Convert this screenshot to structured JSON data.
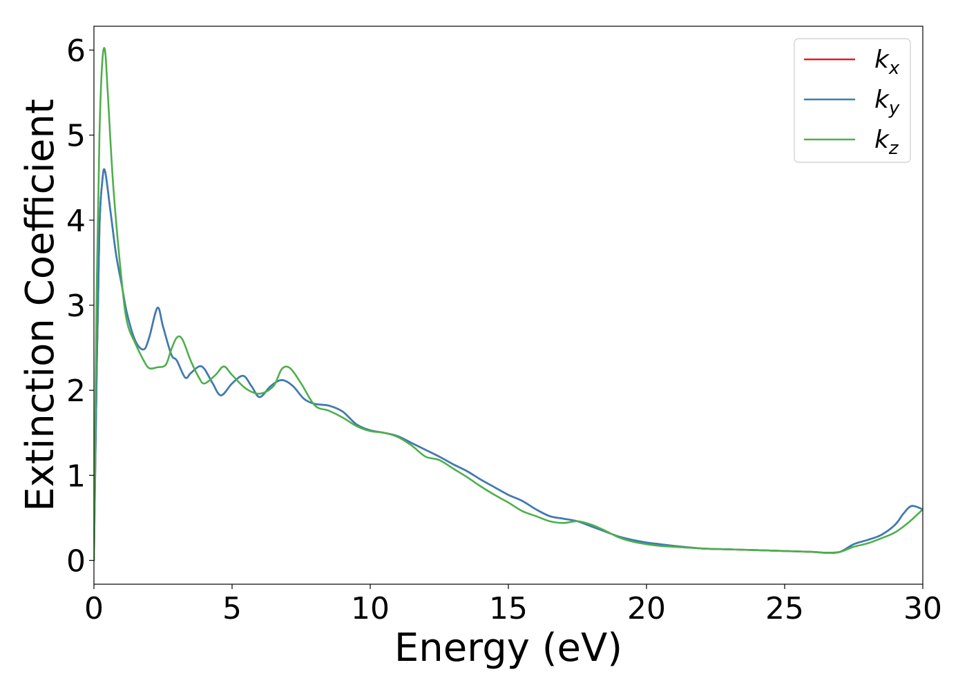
{
  "chart_data": {
    "type": "line",
    "xlabel": "Energy (eV)",
    "ylabel": "Extinction Coefficient",
    "xlim": [
      0,
      30
    ],
    "ylim": [
      -0.28,
      6.28
    ],
    "xticks": [
      0,
      5,
      10,
      15,
      20,
      25,
      30
    ],
    "yticks": [
      0,
      1,
      2,
      3,
      4,
      5,
      6
    ],
    "grid": false,
    "legend_position": "top-right",
    "series": [
      {
        "name": "k_x",
        "color": "#e41a1c",
        "x": [
          0,
          0.1,
          0.2,
          0.3,
          0.4,
          0.6,
          0.8,
          1.0,
          1.2,
          1.5,
          1.8,
          2.0,
          2.3,
          2.5,
          2.8,
          3.0,
          3.3,
          3.5,
          3.8,
          4.0,
          4.3,
          4.6,
          5.0,
          5.4,
          5.7,
          6.0,
          6.4,
          6.8,
          7.2,
          7.6,
          8.0,
          8.5,
          9.0,
          9.5,
          10.0,
          10.5,
          11.0,
          11.5,
          12.0,
          12.5,
          13.0,
          13.5,
          14.0,
          14.5,
          15.0,
          15.5,
          16.0,
          16.5,
          17.0,
          17.5,
          18.0,
          18.5,
          19.0,
          19.5,
          20.0,
          20.5,
          21.0,
          22.0,
          23.0,
          24.0,
          25.0,
          26.0,
          26.5,
          27.0,
          27.5,
          28.0,
          28.5,
          29.0,
          29.3,
          29.6,
          30.0
        ],
        "y": [
          0,
          2.2,
          3.9,
          4.45,
          4.58,
          4.1,
          3.6,
          3.25,
          2.9,
          2.58,
          2.48,
          2.62,
          2.97,
          2.75,
          2.42,
          2.35,
          2.15,
          2.2,
          2.28,
          2.25,
          2.08,
          1.94,
          2.08,
          2.17,
          2.05,
          1.92,
          2.05,
          2.12,
          2.05,
          1.9,
          1.84,
          1.82,
          1.75,
          1.6,
          1.53,
          1.5,
          1.46,
          1.38,
          1.3,
          1.22,
          1.13,
          1.05,
          0.95,
          0.86,
          0.77,
          0.7,
          0.6,
          0.52,
          0.49,
          0.46,
          0.4,
          0.34,
          0.28,
          0.24,
          0.21,
          0.19,
          0.17,
          0.14,
          0.13,
          0.12,
          0.11,
          0.1,
          0.09,
          0.1,
          0.19,
          0.24,
          0.3,
          0.42,
          0.55,
          0.64,
          0.6
        ]
      },
      {
        "name": "k_y",
        "color": "#377eb8",
        "x": [
          0,
          0.1,
          0.2,
          0.3,
          0.4,
          0.6,
          0.8,
          1.0,
          1.2,
          1.5,
          1.8,
          2.0,
          2.3,
          2.5,
          2.8,
          3.0,
          3.3,
          3.5,
          3.8,
          4.0,
          4.3,
          4.6,
          5.0,
          5.4,
          5.7,
          6.0,
          6.4,
          6.8,
          7.2,
          7.6,
          8.0,
          8.5,
          9.0,
          9.5,
          10.0,
          10.5,
          11.0,
          11.5,
          12.0,
          12.5,
          13.0,
          13.5,
          14.0,
          14.5,
          15.0,
          15.5,
          16.0,
          16.5,
          17.0,
          17.5,
          18.0,
          18.5,
          19.0,
          19.5,
          20.0,
          20.5,
          21.0,
          22.0,
          23.0,
          24.0,
          25.0,
          26.0,
          26.5,
          27.0,
          27.5,
          28.0,
          28.5,
          29.0,
          29.3,
          29.6,
          30.0
        ],
        "y": [
          0,
          2.2,
          3.9,
          4.45,
          4.58,
          4.1,
          3.6,
          3.25,
          2.9,
          2.58,
          2.48,
          2.62,
          2.97,
          2.75,
          2.42,
          2.35,
          2.15,
          2.2,
          2.28,
          2.25,
          2.08,
          1.94,
          2.08,
          2.17,
          2.05,
          1.92,
          2.05,
          2.12,
          2.05,
          1.9,
          1.84,
          1.82,
          1.75,
          1.6,
          1.53,
          1.5,
          1.46,
          1.38,
          1.3,
          1.22,
          1.13,
          1.05,
          0.95,
          0.86,
          0.77,
          0.7,
          0.6,
          0.52,
          0.49,
          0.46,
          0.4,
          0.34,
          0.28,
          0.24,
          0.21,
          0.19,
          0.17,
          0.14,
          0.13,
          0.12,
          0.11,
          0.1,
          0.09,
          0.1,
          0.19,
          0.24,
          0.3,
          0.42,
          0.55,
          0.64,
          0.6
        ]
      },
      {
        "name": "k_z",
        "color": "#4daf4a",
        "x": [
          0,
          0.1,
          0.2,
          0.3,
          0.4,
          0.5,
          0.7,
          1.0,
          1.2,
          1.5,
          1.8,
          2.0,
          2.3,
          2.6,
          2.8,
          3.0,
          3.2,
          3.5,
          3.8,
          4.0,
          4.4,
          4.7,
          5.0,
          5.5,
          6.0,
          6.5,
          6.8,
          7.1,
          7.5,
          8.0,
          8.5,
          9.0,
          9.5,
          10.0,
          10.5,
          11.0,
          11.5,
          12.0,
          12.5,
          13.0,
          13.5,
          14.0,
          14.5,
          15.0,
          15.5,
          16.0,
          16.5,
          17.0,
          17.5,
          18.0,
          18.5,
          19.0,
          19.5,
          20.0,
          20.5,
          21.0,
          22.0,
          23.0,
          24.0,
          25.0,
          26.0,
          26.5,
          27.0,
          27.5,
          28.0,
          28.5,
          29.0,
          29.5,
          30.0
        ],
        "y": [
          0,
          3.2,
          5.0,
          5.85,
          6.0,
          5.5,
          4.4,
          3.3,
          2.8,
          2.55,
          2.35,
          2.26,
          2.27,
          2.3,
          2.48,
          2.62,
          2.6,
          2.35,
          2.15,
          2.08,
          2.18,
          2.28,
          2.18,
          2.02,
          1.96,
          2.05,
          2.25,
          2.26,
          2.08,
          1.82,
          1.76,
          1.68,
          1.58,
          1.52,
          1.5,
          1.45,
          1.35,
          1.22,
          1.18,
          1.08,
          0.98,
          0.87,
          0.77,
          0.68,
          0.58,
          0.52,
          0.46,
          0.44,
          0.46,
          0.42,
          0.35,
          0.27,
          0.22,
          0.19,
          0.17,
          0.16,
          0.14,
          0.13,
          0.12,
          0.11,
          0.1,
          0.09,
          0.1,
          0.16,
          0.2,
          0.26,
          0.33,
          0.45,
          0.6
        ]
      }
    ]
  }
}
